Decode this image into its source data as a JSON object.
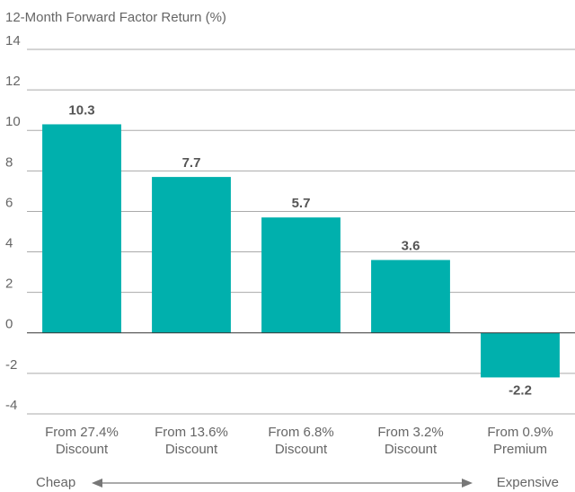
{
  "chart_data": {
    "type": "bar",
    "title": "12-Month Forward Factor Return (%)",
    "categories": [
      [
        "From 27.4%",
        "Discount"
      ],
      [
        "From 13.6%",
        "Discount"
      ],
      [
        "From 6.8%",
        "Discount"
      ],
      [
        "From 3.2%",
        "Discount"
      ],
      [
        "From 0.9%",
        "Premium"
      ]
    ],
    "values": [
      10.3,
      7.7,
      5.7,
      3.6,
      -2.2
    ],
    "color": "#00b0ad",
    "ylim": [
      -4,
      14
    ],
    "yticks": [
      -4,
      -2,
      0,
      2,
      4,
      6,
      8,
      10,
      12,
      14
    ],
    "grid": true,
    "annotations": [
      "Cheap",
      "Expensive"
    ]
  }
}
